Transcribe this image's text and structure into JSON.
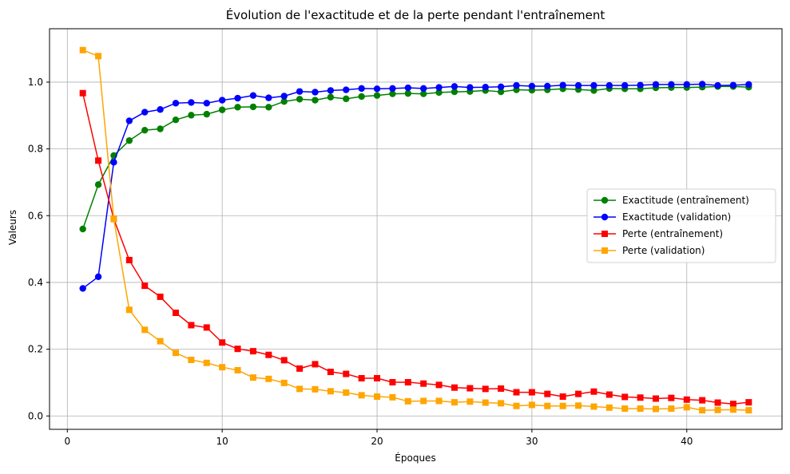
{
  "chart_data": {
    "type": "line",
    "title": "Évolution de l'exactitude et de la perte pendant l'entraînement",
    "xlabel": "Époques",
    "ylabel": "Valeurs",
    "xlim": [
      -1.15,
      46.15
    ],
    "ylim": [
      -0.04,
      1.16
    ],
    "x_ticks": [
      0,
      10,
      20,
      30,
      40
    ],
    "y_ticks": [
      0.0,
      0.2,
      0.4,
      0.6,
      0.8,
      1.0
    ],
    "x_tick_labels": [
      "0",
      "10",
      "20",
      "30",
      "40"
    ],
    "y_tick_labels": [
      "0.0",
      "0.2",
      "0.4",
      "0.6",
      "0.8",
      "1.0"
    ],
    "grid": true,
    "legend_position": "center-right",
    "x": [
      1,
      2,
      3,
      4,
      5,
      6,
      7,
      8,
      9,
      10,
      11,
      12,
      13,
      14,
      15,
      16,
      17,
      18,
      19,
      20,
      21,
      22,
      23,
      24,
      25,
      26,
      27,
      28,
      29,
      30,
      31,
      32,
      33,
      34,
      35,
      36,
      37,
      38,
      39,
      40,
      41,
      42,
      43,
      44
    ],
    "series": [
      {
        "name": "Exactitude (entraînement)",
        "color": "#008000",
        "marker": "circle",
        "values": [
          0.56,
          0.693,
          0.78,
          0.825,
          0.856,
          0.86,
          0.887,
          0.901,
          0.904,
          0.917,
          0.925,
          0.926,
          0.925,
          0.942,
          0.949,
          0.946,
          0.955,
          0.95,
          0.957,
          0.96,
          0.965,
          0.966,
          0.965,
          0.969,
          0.971,
          0.972,
          0.975,
          0.971,
          0.977,
          0.976,
          0.977,
          0.98,
          0.978,
          0.975,
          0.981,
          0.98,
          0.98,
          0.983,
          0.984,
          0.984,
          0.985,
          0.987,
          0.987,
          0.985
        ]
      },
      {
        "name": "Exactitude (validation)",
        "color": "#0000ff",
        "marker": "circle",
        "values": [
          0.382,
          0.417,
          0.76,
          0.884,
          0.91,
          0.918,
          0.937,
          0.939,
          0.937,
          0.946,
          0.952,
          0.96,
          0.953,
          0.958,
          0.972,
          0.97,
          0.975,
          0.977,
          0.981,
          0.98,
          0.981,
          0.983,
          0.981,
          0.984,
          0.987,
          0.984,
          0.985,
          0.986,
          0.99,
          0.988,
          0.988,
          0.991,
          0.99,
          0.99,
          0.99,
          0.99,
          0.991,
          0.993,
          0.993,
          0.993,
          0.994,
          0.99,
          0.991,
          0.993
        ]
      },
      {
        "name": "Perte (entraînement)",
        "color": "#ff0000",
        "marker": "square",
        "values": [
          0.967,
          0.765,
          0.59,
          0.467,
          0.39,
          0.357,
          0.309,
          0.272,
          0.265,
          0.22,
          0.201,
          0.194,
          0.183,
          0.167,
          0.142,
          0.155,
          0.132,
          0.126,
          0.113,
          0.113,
          0.101,
          0.101,
          0.097,
          0.093,
          0.085,
          0.083,
          0.081,
          0.082,
          0.071,
          0.071,
          0.066,
          0.058,
          0.066,
          0.073,
          0.064,
          0.057,
          0.055,
          0.052,
          0.054,
          0.049,
          0.047,
          0.04,
          0.036,
          0.041
        ]
      },
      {
        "name": "Perte (validation)",
        "color": "#ffa500",
        "marker": "square",
        "values": [
          1.096,
          1.078,
          0.59,
          0.318,
          0.258,
          0.224,
          0.189,
          0.168,
          0.159,
          0.146,
          0.137,
          0.115,
          0.111,
          0.099,
          0.081,
          0.08,
          0.074,
          0.07,
          0.062,
          0.058,
          0.056,
          0.044,
          0.045,
          0.045,
          0.041,
          0.043,
          0.04,
          0.038,
          0.03,
          0.033,
          0.03,
          0.03,
          0.031,
          0.028,
          0.025,
          0.022,
          0.022,
          0.021,
          0.022,
          0.026,
          0.017,
          0.018,
          0.019,
          0.017
        ]
      }
    ]
  }
}
